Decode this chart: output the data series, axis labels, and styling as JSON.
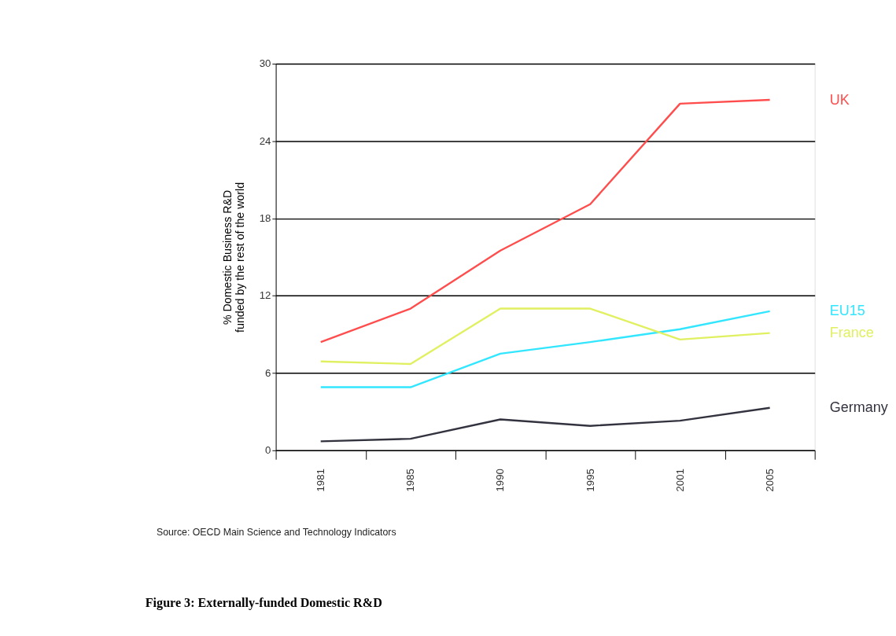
{
  "chart_data": {
    "type": "line",
    "title": "Figure 3: Externally-funded Domestic R&D",
    "ylabel": "% Domestic Business R&D\nfunded by the rest of the world",
    "categories": [
      "1981",
      "1985",
      "1990",
      "1995",
      "2001",
      "2005"
    ],
    "series": [
      {
        "name": "UK",
        "color": "#ff4d4d",
        "values": [
          8.4,
          11.0,
          15.5,
          19.1,
          26.9,
          27.2
        ]
      },
      {
        "name": "EU15",
        "color": "#33e6ff",
        "values": [
          4.9,
          4.9,
          7.5,
          8.4,
          9.4,
          10.8
        ]
      },
      {
        "name": "France",
        "color": "#e0f060",
        "values": [
          6.9,
          6.7,
          11.0,
          11.0,
          8.6,
          9.1
        ]
      },
      {
        "name": "Germany",
        "color": "#333340",
        "values": [
          0.7,
          0.9,
          2.4,
          1.9,
          2.3,
          3.3
        ]
      }
    ],
    "ylim": [
      0,
      30
    ],
    "yticks": [
      0,
      6,
      12,
      18,
      24,
      30
    ],
    "grid": "y",
    "legend": false,
    "annotations": [
      "Source: OECD Main Science and Technology Indicators"
    ]
  }
}
